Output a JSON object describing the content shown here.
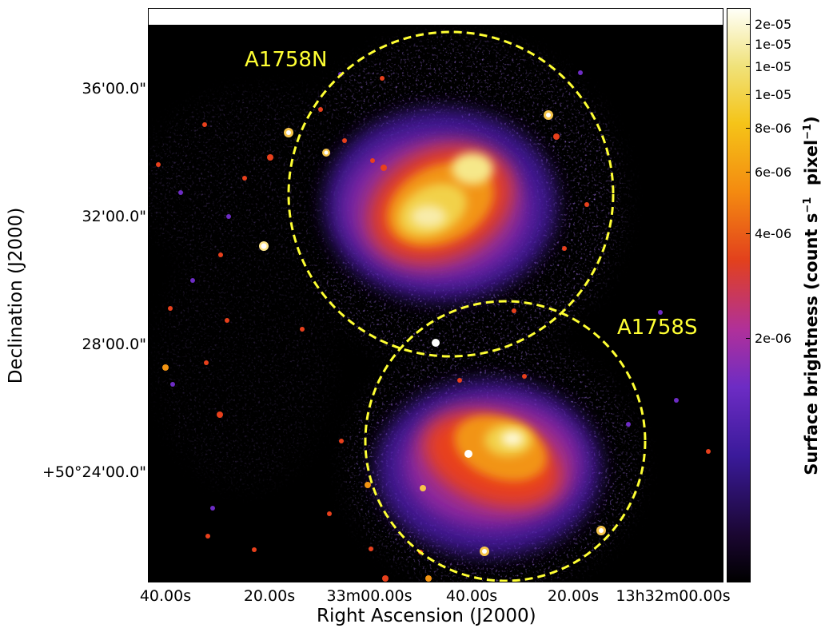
{
  "figure": {
    "sources": [
      {
        "name": "A1758N"
      },
      {
        "name": "A1758S"
      }
    ],
    "x_axis": {
      "label": "Right Ascension (J2000)",
      "ticks": [
        "40.00s",
        "20.00s",
        "33m00.00s",
        "40.00s",
        "20.00s",
        "13h32m00.00s"
      ]
    },
    "y_axis": {
      "label": "Declination (J2000)",
      "ticks": [
        "36'00.0\"",
        "32'00.0\"",
        "28'00.0\"",
        "+50°24'00.0\""
      ]
    },
    "colorbar": {
      "label_main": "Surface brightness (count s",
      "label_sup1": "−1",
      "label_mid": "  pixel",
      "label_sup2": "−1",
      "label_end": ")",
      "ticks": [
        "2e-05",
        "1e-05",
        "1e-05",
        "1e-05",
        "8e-06",
        "6e-06",
        "4e-06",
        "2e-06"
      ],
      "colormap": "CMRmap-like (black → purple → red → orange → yellow → white)"
    },
    "colors": {
      "region_circles": "#ffff33",
      "background": "#000000"
    }
  }
}
